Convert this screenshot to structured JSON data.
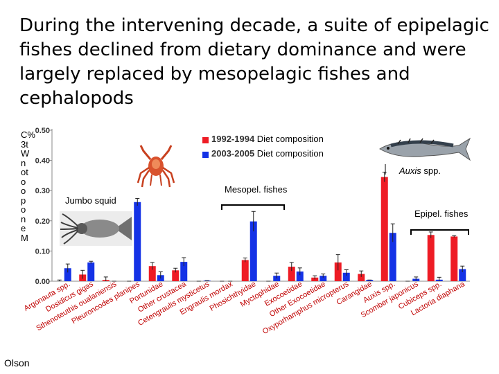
{
  "slide": {
    "title": "During the intervening decade, a suite of epipelagic fishes declined from dietary dominance and were largely replaced by mesopelagic fishes and cephalopods",
    "author": "Olson",
    "jumbo_squid_label": "Jumbo squid",
    "auxis_label_italic": "Auxis",
    "auxis_label_rest": " spp.",
    "ylabel_fragment": "C%3tWnotoopone M"
  },
  "colors": {
    "series_1992": "#ee1c25",
    "series_2003": "#1432e6",
    "error": "#222222"
  },
  "chart_data": {
    "type": "bar",
    "title": "",
    "ylabel": "",
    "ylim": [
      0,
      0.5
    ],
    "yticks": [
      "0.00",
      "0.10",
      "0.20",
      "0.30",
      "0.40",
      "0.50"
    ],
    "categories": [
      "Argonauta spp.",
      "Dosidicus gigas",
      "Sthenoteuthis oualaniensis",
      "Pleuroncodes planipes",
      "Portunidae",
      "Other crustacea",
      "Cetengraulis mysticetus",
      "Engraulis mordax",
      "Phosichthyidae",
      "Myctophidae",
      "Exocoetidae",
      "Other Exocoetidae",
      "Oxyporhamphus micropterus",
      "Carangidae",
      "Auxis spp.",
      "Scomber japonicus",
      "Cubiceps spp.",
      "Lactoria diaphana"
    ],
    "series": [
      {
        "name": "1992-1994",
        "legend_suffix": " Diet composition",
        "values": [
          0.0,
          0.022,
          0.004,
          0.0,
          0.05,
          0.036,
          0.0,
          0.0,
          0.07,
          0.0,
          0.048,
          0.012,
          0.062,
          0.024,
          0.345,
          0.0,
          0.153,
          0.148
        ],
        "errors": [
          0.004,
          0.014,
          0.01,
          0.0,
          0.012,
          0.007,
          0.0,
          0.0,
          0.007,
          0.0,
          0.014,
          0.006,
          0.026,
          0.01,
          0.016,
          0.0,
          0.01,
          0.003
        ]
      },
      {
        "name": "2003-2005",
        "legend_suffix": " Diet composition",
        "values": [
          0.043,
          0.062,
          0.0,
          0.262,
          0.02,
          0.064,
          0.002,
          0.0,
          0.198,
          0.018,
          0.032,
          0.018,
          0.028,
          0.004,
          0.16,
          0.008,
          0.005,
          0.04
        ],
        "errors": [
          0.014,
          0.004,
          0.0,
          0.012,
          0.011,
          0.014,
          0.0,
          0.0,
          0.033,
          0.009,
          0.012,
          0.006,
          0.01,
          0.0,
          0.03,
          0.006,
          0.008,
          0.01
        ]
      }
    ],
    "annotations": [
      "Mesopel. fishes",
      "Epipel. fishes"
    ]
  }
}
